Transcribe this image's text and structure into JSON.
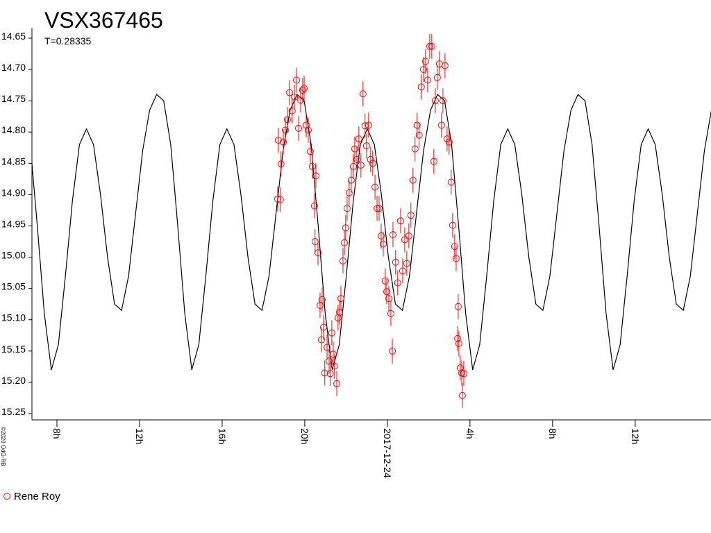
{
  "chart_data": {
    "type": "scatter",
    "title": "VSX367465",
    "subtitle": "T=0.28335",
    "credit": "©2020 OdG-RB",
    "y_inverted": true,
    "xlim": [
      6.79,
      39.67
    ],
    "xticks": [
      {
        "value": 8,
        "label": "8h"
      },
      {
        "value": 12,
        "label": "12h"
      },
      {
        "value": 16,
        "label": "16h"
      },
      {
        "value": 20,
        "label": "20h"
      },
      {
        "value": 24,
        "label": "2017-12-24"
      },
      {
        "value": 28,
        "label": "4h"
      },
      {
        "value": 32,
        "label": "8h"
      },
      {
        "value": 36,
        "label": "12h"
      }
    ],
    "ylim": [
      14.65,
      15.26
    ],
    "yticks": [
      14.65,
      {
        "value": 14.7,
        "label": "14.70"
      },
      14.75,
      {
        "value": 14.8,
        "label": "14.80"
      },
      14.85,
      {
        "value": 14.9,
        "label": "14.90"
      },
      14.95,
      {
        "value": 15.0,
        "label": "15.00"
      },
      15.05,
      {
        "value": 15.1,
        "label": "15.10"
      },
      15.15,
      {
        "value": 15.2,
        "label": "15.20"
      },
      15.25
    ],
    "series": [
      {
        "type": "line",
        "color": "#000000",
        "x": [
          6.71,
          7.05,
          7.39,
          7.73,
          8.07,
          8.41,
          8.75,
          9.09,
          9.43,
          9.77,
          10.11,
          10.45,
          10.79,
          11.13,
          11.47,
          11.81,
          12.15,
          12.49,
          12.83,
          13.17,
          13.51,
          13.85,
          14.19,
          14.53,
          14.87,
          15.21,
          15.55,
          15.89,
          16.23,
          16.57,
          16.91,
          17.25,
          17.59,
          17.93,
          18.27,
          18.61,
          18.95,
          19.29,
          19.63,
          19.97,
          20.31,
          20.65,
          20.99,
          21.33,
          21.67,
          22.01,
          22.35,
          22.69,
          23.03,
          23.37,
          23.71,
          24.05,
          24.39,
          24.73,
          25.07,
          25.41,
          25.75,
          26.09,
          26.43,
          26.77,
          27.11,
          27.45,
          27.79,
          28.13,
          28.47,
          28.81,
          29.15,
          29.49,
          29.83,
          30.17,
          30.51,
          30.85,
          31.19,
          31.53,
          31.87,
          32.21,
          32.55,
          32.89,
          33.23,
          33.57,
          33.91,
          34.25,
          34.59,
          34.93,
          35.27,
          35.61,
          35.95,
          36.29,
          36.63,
          36.97,
          37.31,
          37.65,
          37.99,
          38.33,
          38.67,
          39.01,
          39.35,
          39.69
        ],
        "values": [
          14.82,
          14.95,
          15.09,
          15.18,
          15.14,
          15.03,
          14.91,
          14.82,
          14.795,
          14.82,
          14.9,
          15.0,
          15.075,
          15.085,
          15.03,
          14.93,
          14.83,
          14.765,
          14.74,
          14.75,
          14.82,
          14.95,
          15.09,
          15.18,
          15.14,
          15.03,
          14.91,
          14.82,
          14.795,
          14.82,
          14.9,
          15.0,
          15.075,
          15.085,
          15.03,
          14.93,
          14.83,
          14.765,
          14.74,
          14.75,
          14.82,
          14.95,
          15.09,
          15.18,
          15.14,
          15.03,
          14.91,
          14.82,
          14.795,
          14.82,
          14.9,
          15.0,
          15.075,
          15.085,
          15.03,
          14.93,
          14.83,
          14.765,
          14.74,
          14.75,
          14.82,
          14.95,
          15.09,
          15.18,
          15.14,
          15.03,
          14.91,
          14.82,
          14.795,
          14.82,
          14.9,
          15.0,
          15.075,
          15.085,
          15.03,
          14.93,
          14.83,
          14.765,
          14.74,
          14.75,
          14.82,
          14.95,
          15.09,
          15.18,
          15.14,
          15.03,
          14.91,
          14.82,
          14.795,
          14.82,
          14.9,
          15.0,
          15.075,
          15.085,
          15.03,
          14.93,
          14.83,
          14.765
        ]
      },
      {
        "type": "scatter",
        "name": "Rene Roy",
        "color": "#ff0000",
        "x": [
          18.69,
          18.82,
          18.72,
          18.85,
          18.96,
          19.06,
          19.16,
          19.26,
          19.39,
          19.5,
          19.6,
          19.7,
          19.8,
          19.9,
          19.97,
          20.07,
          20.17,
          20.27,
          20.37,
          20.47,
          20.54,
          20.5,
          20.64,
          20.74,
          20.84,
          20.81,
          20.91,
          20.97,
          21.08,
          21.18,
          21.24,
          21.31,
          21.38,
          21.44,
          21.55,
          21.61,
          21.68,
          21.75,
          21.85,
          21.92,
          21.98,
          22.05,
          22.15,
          22.25,
          22.35,
          22.42,
          22.52,
          22.62,
          22.72,
          22.82,
          22.92,
          22.99,
          23.09,
          23.19,
          23.29,
          23.4,
          23.5,
          23.6,
          23.7,
          23.8,
          23.9,
          23.97,
          24.07,
          24.17,
          24.24,
          24.27,
          24.4,
          24.5,
          24.64,
          24.74,
          24.84,
          24.94,
          25.04,
          25.14,
          25.24,
          25.34,
          25.44,
          25.54,
          25.64,
          25.75,
          25.85,
          25.95,
          26.05,
          26.15,
          26.25,
          26.32,
          26.42,
          26.52,
          26.62,
          26.69,
          26.79,
          26.89,
          26.99,
          27.09,
          27.16,
          27.26,
          27.33,
          27.43,
          27.4,
          27.46,
          27.53,
          27.6,
          27.63,
          27.7
        ],
        "values": [
          14.907,
          14.908,
          14.813,
          14.851,
          14.816,
          14.797,
          14.78,
          14.737,
          14.766,
          14.744,
          14.717,
          14.794,
          14.749,
          14.733,
          14.73,
          14.789,
          14.797,
          14.831,
          14.855,
          14.918,
          14.87,
          14.975,
          14.993,
          15.077,
          15.068,
          15.132,
          15.112,
          15.185,
          15.144,
          15.166,
          15.186,
          15.121,
          15.155,
          15.174,
          15.202,
          15.097,
          15.088,
          15.066,
          15.006,
          14.977,
          14.953,
          14.922,
          14.897,
          14.877,
          14.855,
          14.827,
          14.844,
          14.811,
          14.853,
          14.739,
          14.79,
          14.822,
          14.789,
          14.844,
          14.85,
          14.888,
          14.922,
          14.922,
          14.966,
          14.979,
          15.038,
          15.055,
          15.066,
          15.09,
          15.15,
          14.964,
          15.008,
          15.041,
          14.942,
          15.022,
          14.972,
          15.01,
          14.966,
          14.933,
          14.877,
          14.827,
          14.789,
          14.805,
          14.728,
          14.7,
          14.687,
          14.717,
          14.663,
          14.663,
          14.847,
          14.75,
          14.713,
          14.691,
          14.789,
          14.75,
          14.694,
          14.811,
          14.816,
          14.88,
          14.949,
          14.983,
          15.002,
          15.079,
          15.13,
          15.138,
          15.177,
          15.185,
          15.221,
          15.186
        ],
        "errors": [
          0.02,
          0.02,
          0.02,
          0.02,
          0.02,
          0.02,
          0.02,
          0.02,
          0.02,
          0.02,
          0.02,
          0.02,
          0.02,
          0.02,
          0.02,
          0.02,
          0.02,
          0.02,
          0.02,
          0.02,
          0.02,
          0.02,
          0.02,
          0.02,
          0.02,
          0.02,
          0.02,
          0.02,
          0.02,
          0.02,
          0.02,
          0.02,
          0.02,
          0.02,
          0.02,
          0.02,
          0.02,
          0.02,
          0.02,
          0.02,
          0.02,
          0.02,
          0.02,
          0.02,
          0.02,
          0.02,
          0.02,
          0.02,
          0.02,
          0.02,
          0.02,
          0.02,
          0.02,
          0.02,
          0.02,
          0.02,
          0.02,
          0.02,
          0.02,
          0.02,
          0.02,
          0.02,
          0.02,
          0.02,
          0.02,
          0.02,
          0.02,
          0.02,
          0.02,
          0.02,
          0.02,
          0.02,
          0.02,
          0.02,
          0.02,
          0.02,
          0.02,
          0.02,
          0.02,
          0.02,
          0.02,
          0.02,
          0.02,
          0.02,
          0.02,
          0.02,
          0.02,
          0.02,
          0.02,
          0.02,
          0.02,
          0.02,
          0.02,
          0.02,
          0.02,
          0.02,
          0.02,
          0.02,
          0.02,
          0.02,
          0.02,
          0.02,
          0.02,
          0.02
        ]
      }
    ]
  }
}
